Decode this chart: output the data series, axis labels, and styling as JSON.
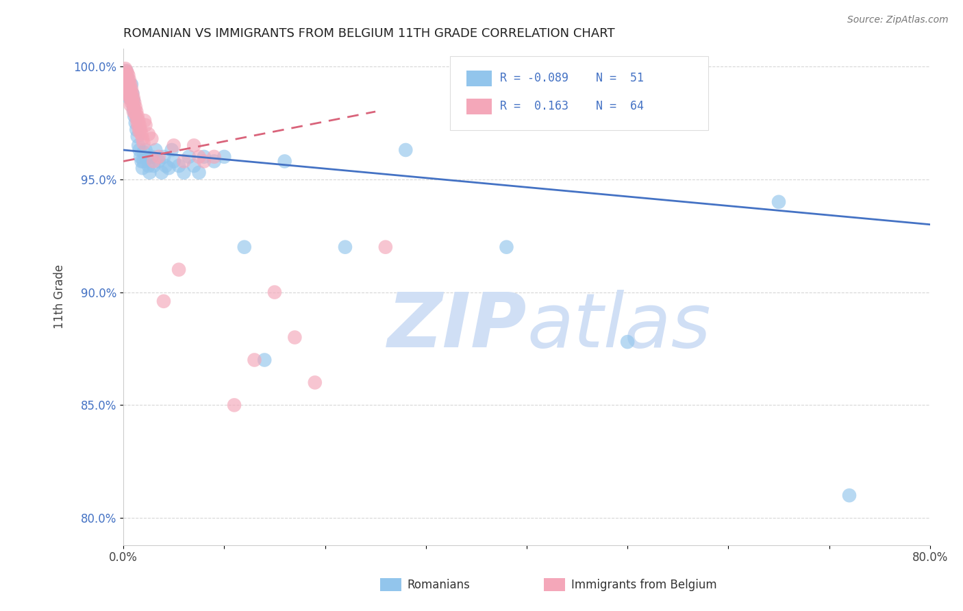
{
  "title": "ROMANIAN VS IMMIGRANTS FROM BELGIUM 11TH GRADE CORRELATION CHART",
  "source_text": "Source: ZipAtlas.com",
  "ylabel": "11th Grade",
  "xlim": [
    0.0,
    0.8
  ],
  "ylim": [
    0.788,
    1.008
  ],
  "xticks": [
    0.0,
    0.1,
    0.2,
    0.3,
    0.4,
    0.5,
    0.6,
    0.7,
    0.8
  ],
  "xticklabels": [
    "0.0%",
    "",
    "",
    "",
    "",
    "",
    "",
    "",
    "80.0%"
  ],
  "yticks": [
    0.8,
    0.85,
    0.9,
    0.95,
    1.0
  ],
  "yticklabels": [
    "80.0%",
    "85.0%",
    "90.0%",
    "95.0%",
    "100.0%"
  ],
  "legend_R_blue": "-0.089",
  "legend_N_blue": "51",
  "legend_R_pink": "0.163",
  "legend_N_pink": "64",
  "blue_color": "#92C5EC",
  "pink_color": "#F4A7B9",
  "blue_line_color": "#4472C4",
  "pink_line_color": "#D9637A",
  "watermark_color": "#D0DFF5",
  "grid_color": "#BBBBBB",
  "bg_color": "#FFFFFF",
  "blue_x": [
    0.003,
    0.004,
    0.005,
    0.005,
    0.006,
    0.008,
    0.009,
    0.01,
    0.01,
    0.011,
    0.012,
    0.013,
    0.014,
    0.015,
    0.016,
    0.017,
    0.018,
    0.019,
    0.02,
    0.02,
    0.022,
    0.023,
    0.025,
    0.026,
    0.028,
    0.03,
    0.032,
    0.035,
    0.038,
    0.04,
    0.042,
    0.045,
    0.048,
    0.05,
    0.055,
    0.06,
    0.065,
    0.07,
    0.075,
    0.08,
    0.09,
    0.1,
    0.12,
    0.14,
    0.16,
    0.22,
    0.28,
    0.38,
    0.5,
    0.65,
    0.72
  ],
  "blue_y": [
    0.998,
    0.995,
    0.993,
    0.989,
    0.986,
    0.992,
    0.988,
    0.985,
    0.981,
    0.978,
    0.975,
    0.972,
    0.969,
    0.965,
    0.963,
    0.96,
    0.958,
    0.955,
    0.962,
    0.958,
    0.963,
    0.959,
    0.956,
    0.953,
    0.96,
    0.956,
    0.963,
    0.958,
    0.953,
    0.96,
    0.956,
    0.955,
    0.963,
    0.958,
    0.956,
    0.953,
    0.96,
    0.956,
    0.953,
    0.96,
    0.958,
    0.96,
    0.92,
    0.87,
    0.958,
    0.92,
    0.963,
    0.92,
    0.878,
    0.94,
    0.81
  ],
  "pink_x": [
    0.002,
    0.002,
    0.002,
    0.003,
    0.003,
    0.004,
    0.004,
    0.004,
    0.004,
    0.005,
    0.005,
    0.005,
    0.005,
    0.006,
    0.006,
    0.006,
    0.007,
    0.007,
    0.007,
    0.007,
    0.008,
    0.008,
    0.008,
    0.009,
    0.009,
    0.01,
    0.01,
    0.01,
    0.011,
    0.011,
    0.012,
    0.012,
    0.013,
    0.013,
    0.014,
    0.014,
    0.015,
    0.015,
    0.016,
    0.016,
    0.017,
    0.018,
    0.019,
    0.02,
    0.021,
    0.022,
    0.025,
    0.028,
    0.03,
    0.035,
    0.04,
    0.05,
    0.055,
    0.06,
    0.07,
    0.075,
    0.08,
    0.09,
    0.11,
    0.13,
    0.15,
    0.17,
    0.19,
    0.26
  ],
  "pink_y": [
    0.999,
    0.996,
    0.993,
    0.998,
    0.995,
    0.997,
    0.994,
    0.991,
    0.988,
    0.996,
    0.993,
    0.99,
    0.987,
    0.994,
    0.991,
    0.988,
    0.992,
    0.989,
    0.986,
    0.983,
    0.99,
    0.987,
    0.984,
    0.988,
    0.985,
    0.986,
    0.983,
    0.98,
    0.984,
    0.981,
    0.982,
    0.979,
    0.98,
    0.977,
    0.978,
    0.975,
    0.976,
    0.973,
    0.974,
    0.971,
    0.972,
    0.97,
    0.968,
    0.966,
    0.976,
    0.974,
    0.97,
    0.968,
    0.958,
    0.96,
    0.896,
    0.965,
    0.91,
    0.958,
    0.965,
    0.96,
    0.958,
    0.96,
    0.85,
    0.87,
    0.9,
    0.88,
    0.86,
    0.92
  ]
}
